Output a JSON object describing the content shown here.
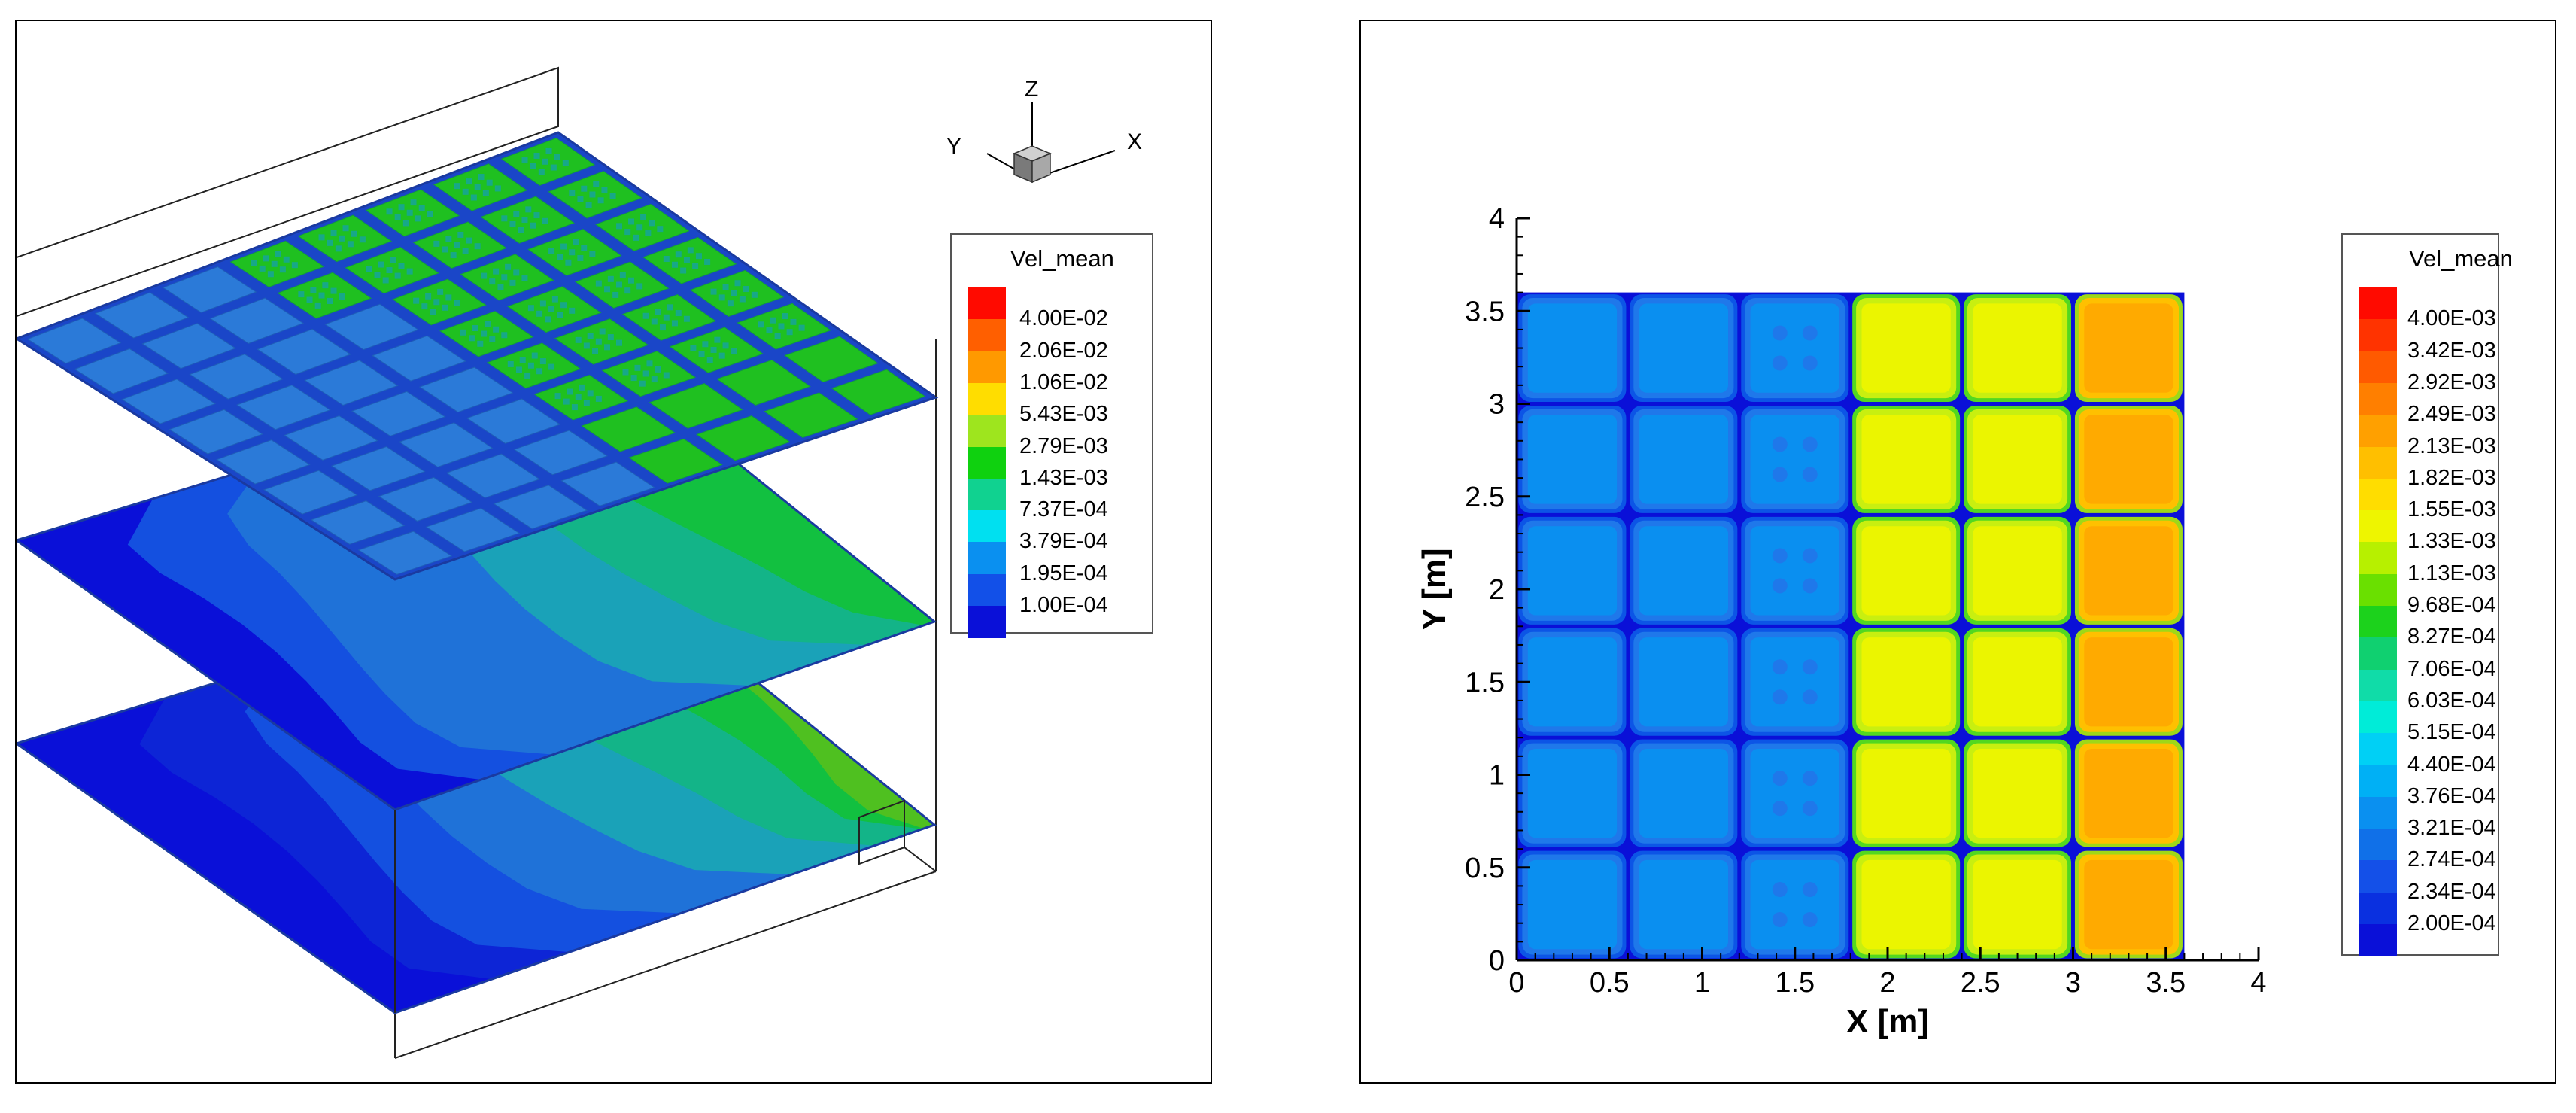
{
  "chart_data": [
    {
      "type": "heatmap",
      "view": "3d-slices",
      "axes_triad": {
        "x": "X",
        "y": "Y",
        "z": "Z"
      },
      "legend": {
        "title": "Vel_mean",
        "placement": "right",
        "levels": [
          "4.00E-02",
          "2.06E-02",
          "1.06E-02",
          "5.43E-03",
          "2.79E-03",
          "1.43E-03",
          "7.37E-04",
          "3.79E-04",
          "1.95E-04",
          "1.00E-04"
        ],
        "colors": [
          "#ff0a00",
          "#ff5f00",
          "#ff9900",
          "#ffdd00",
          "#9ee51e",
          "#0fd10f",
          "#10d290",
          "#00e0f0",
          "#0a90f0",
          "#1250e8",
          "#0a10d8"
        ]
      },
      "slices": [
        {
          "name": "top",
          "pattern": "grid of cells; left half blue (~3.8E-04), right half green (~2.8E-03)"
        },
        {
          "name": "middle",
          "pattern": "blue left, green toward right"
        },
        {
          "name": "bottom",
          "pattern": "dark blue left, green toward right"
        }
      ]
    },
    {
      "type": "heatmap",
      "xlabel": "X [m]",
      "ylabel": "Y [m]",
      "xlim": [
        0,
        4
      ],
      "ylim": [
        0,
        4
      ],
      "xticks": [
        "0",
        "0.5",
        "1",
        "1.5",
        "2",
        "2.5",
        "3",
        "3.5",
        "4"
      ],
      "yticks": [
        "0",
        "0.5",
        "1",
        "1.5",
        "2",
        "2.5",
        "3",
        "3.5",
        "4"
      ],
      "domain": {
        "x": [
          0,
          3.6
        ],
        "y": [
          0,
          3.6
        ]
      },
      "grid": {
        "columns": 6,
        "rows": 6
      },
      "column_mean_values": [
        0.00035,
        0.00035,
        0.00035,
        0.0015,
        0.0015,
        0.0021
      ],
      "legend": {
        "title": "Vel_mean",
        "placement": "right",
        "levels": [
          "4.00E-03",
          "3.42E-03",
          "2.92E-03",
          "2.49E-03",
          "2.13E-03",
          "1.82E-03",
          "1.55E-03",
          "1.33E-03",
          "1.13E-03",
          "9.68E-04",
          "8.27E-04",
          "7.06E-04",
          "6.03E-04",
          "5.15E-04",
          "4.40E-04",
          "3.76E-04",
          "3.21E-04",
          "2.74E-04",
          "2.34E-04",
          "2.00E-04"
        ],
        "colors": [
          "#ff0a00",
          "#ff3300",
          "#ff5a00",
          "#ff7f00",
          "#ffa000",
          "#ffbf00",
          "#ffdd00",
          "#eef500",
          "#b7f000",
          "#6ae000",
          "#1cd21c",
          "#10d070",
          "#10dca8",
          "#00ecd8",
          "#00d0f5",
          "#00b0f5",
          "#0a90f0",
          "#1070e8",
          "#1450e8",
          "#0a30e0",
          "#0a10d8"
        ]
      }
    }
  ]
}
